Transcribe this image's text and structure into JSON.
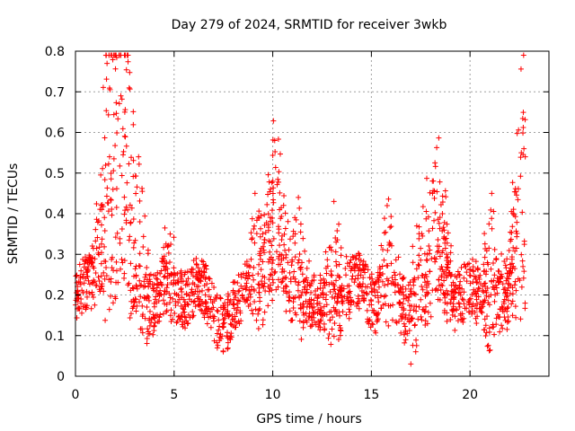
{
  "chart_data": {
    "type": "scatter",
    "title": "Day 279 of 2024, SRMTID for receiver 3wkb",
    "xlabel": "GPS time / hours",
    "ylabel": "SRMTID / TECUs",
    "xlim": [
      0,
      24
    ],
    "ylim": [
      0,
      0.8
    ],
    "xticks": [
      0,
      5,
      10,
      15,
      20
    ],
    "xtick_labels": [
      "0",
      "5",
      "10",
      "15",
      "20"
    ],
    "yticks": [
      0,
      0.1,
      0.2,
      0.3,
      0.4,
      0.5,
      0.6,
      0.7,
      0.8
    ],
    "ytick_labels": [
      "0",
      "0.1",
      "0.2",
      "0.3",
      "0.4",
      "0.5",
      "0.6",
      "0.7",
      "0.8"
    ],
    "grid": true,
    "marker": "+",
    "color": "#ff0000",
    "series": [
      {
        "name": "SRMTID",
        "x_range_hours": [
          0,
          22.8
        ],
        "typical_range": [
          0.08,
          0.28
        ],
        "point_count": 2000,
        "peaks": [
          {
            "x": 1.6,
            "y": 0.77
          },
          {
            "x": 2.3,
            "y": 0.69
          },
          {
            "x": 2.5,
            "y": 0.65
          },
          {
            "x": 3.2,
            "y": 0.54
          },
          {
            "x": 4.8,
            "y": 0.35
          },
          {
            "x": 9.1,
            "y": 0.45
          },
          {
            "x": 10.1,
            "y": 0.58
          },
          {
            "x": 11.3,
            "y": 0.44
          },
          {
            "x": 13.1,
            "y": 0.43
          },
          {
            "x": 15.8,
            "y": 0.42
          },
          {
            "x": 17.3,
            "y": 0.37
          },
          {
            "x": 18.1,
            "y": 0.45
          },
          {
            "x": 18.6,
            "y": 0.4
          },
          {
            "x": 21.1,
            "y": 0.45
          },
          {
            "x": 22.6,
            "y": 0.55
          },
          {
            "x": 22.8,
            "y": 0.54
          }
        ],
        "minimum": {
          "x": 17.0,
          "y": 0.03
        }
      }
    ]
  }
}
